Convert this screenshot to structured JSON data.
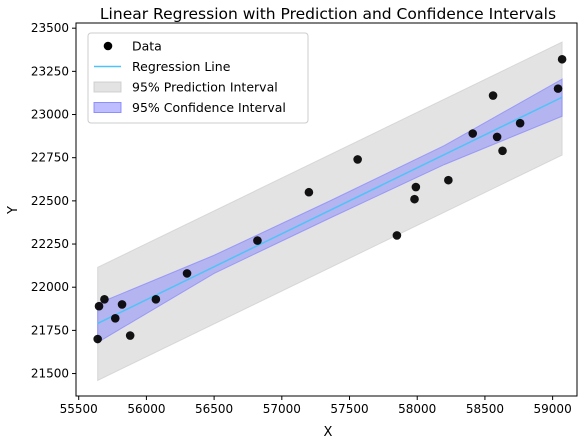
{
  "chart_data": {
    "type": "scatter",
    "title": "Linear Regression with Prediction and Confidence Intervals",
    "xlabel": "X",
    "ylabel": "Y",
    "xlim": [
      55480,
      59180
    ],
    "ylim": [
      21370,
      23530
    ],
    "xticks": [
      55500,
      56000,
      56500,
      57000,
      57500,
      58000,
      58500,
      59000
    ],
    "yticks": [
      21500,
      21750,
      22000,
      22250,
      22500,
      22750,
      23000,
      23250,
      23500
    ],
    "grid": false,
    "legend_position": "top-left",
    "points": [
      {
        "x": 55640,
        "y": 21700
      },
      {
        "x": 55650,
        "y": 21890
      },
      {
        "x": 55690,
        "y": 21930
      },
      {
        "x": 55770,
        "y": 21820
      },
      {
        "x": 55820,
        "y": 21900
      },
      {
        "x": 55880,
        "y": 21720
      },
      {
        "x": 56070,
        "y": 21930
      },
      {
        "x": 56300,
        "y": 22080
      },
      {
        "x": 56820,
        "y": 22270
      },
      {
        "x": 57200,
        "y": 22550
      },
      {
        "x": 57560,
        "y": 22740
      },
      {
        "x": 57850,
        "y": 22300
      },
      {
        "x": 57980,
        "y": 22510
      },
      {
        "x": 57990,
        "y": 22580
      },
      {
        "x": 58230,
        "y": 22620
      },
      {
        "x": 58410,
        "y": 22890
      },
      {
        "x": 58560,
        "y": 23110
      },
      {
        "x": 58590,
        "y": 22870
      },
      {
        "x": 58630,
        "y": 22790
      },
      {
        "x": 58760,
        "y": 22950
      },
      {
        "x": 59040,
        "y": 23150
      },
      {
        "x": 59070,
        "y": 23320
      }
    ],
    "regression_line": {
      "x": [
        55640,
        59070
      ],
      "y": [
        21790,
        23100
      ]
    },
    "confidence_interval": {
      "x": [
        55640,
        56500,
        57355,
        58200,
        59070
      ],
      "lower": [
        21680,
        22080,
        22400,
        22710,
        22990
      ],
      "upper": [
        21905,
        22185,
        22500,
        22820,
        23205
      ]
    },
    "prediction_interval": {
      "x": [
        55640,
        59070
      ],
      "lower": [
        21460,
        22765
      ],
      "upper": [
        22115,
        23420
      ]
    },
    "legend": [
      {
        "label": "Data",
        "kind": "marker",
        "color": "#000000"
      },
      {
        "label": "Regression Line",
        "kind": "line",
        "color": "#4fc3f7"
      },
      {
        "label": "95% Prediction Interval",
        "kind": "patch",
        "color": "#c8c8c8"
      },
      {
        "label": "95% Confidence Interval",
        "kind": "patch",
        "color": "#7b7bff"
      }
    ],
    "colors": {
      "data": "#000000",
      "regression": "#4fc3f7",
      "prediction": "#c8c8c8",
      "confidence": "#7b7bff"
    }
  }
}
